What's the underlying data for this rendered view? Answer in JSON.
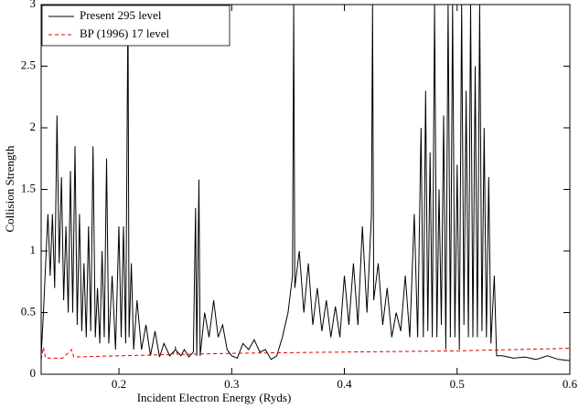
{
  "chart_data": {
    "type": "line",
    "xlabel": "Incident Electron Energy (Ryds)",
    "ylabel": "Collision Strength",
    "xlim": [
      0.131,
      0.6
    ],
    "xticks": [
      0.2,
      0.3,
      0.4,
      0.5,
      0.6
    ],
    "ylim": [
      0,
      3
    ],
    "yticks": [
      0,
      0.5,
      1,
      1.5,
      2,
      2.5,
      3
    ],
    "legend": "upper-left",
    "series": [
      {
        "name": "Present 295 level",
        "color": "#000000",
        "dash": false,
        "x": [
          0.131,
          0.133,
          0.135,
          0.137,
          0.139,
          0.141,
          0.143,
          0.145,
          0.147,
          0.149,
          0.151,
          0.153,
          0.155,
          0.157,
          0.159,
          0.161,
          0.163,
          0.165,
          0.167,
          0.169,
          0.171,
          0.173,
          0.175,
          0.177,
          0.179,
          0.181,
          0.183,
          0.185,
          0.187,
          0.189,
          0.191,
          0.194,
          0.197,
          0.2,
          0.202,
          0.204,
          0.206,
          0.208,
          0.209,
          0.211,
          0.213,
          0.216,
          0.22,
          0.224,
          0.228,
          0.232,
          0.236,
          0.24,
          0.245,
          0.25,
          0.255,
          0.258,
          0.262,
          0.266,
          0.268,
          0.269,
          0.271,
          0.272,
          0.276,
          0.28,
          0.284,
          0.288,
          0.292,
          0.296,
          0.3,
          0.305,
          0.31,
          0.315,
          0.32,
          0.325,
          0.33,
          0.335,
          0.34,
          0.345,
          0.35,
          0.354,
          0.355,
          0.356,
          0.36,
          0.364,
          0.368,
          0.372,
          0.376,
          0.38,
          0.384,
          0.388,
          0.392,
          0.396,
          0.4,
          0.404,
          0.408,
          0.412,
          0.416,
          0.42,
          0.424,
          0.425,
          0.426,
          0.43,
          0.434,
          0.438,
          0.442,
          0.446,
          0.45,
          0.454,
          0.458,
          0.462,
          0.465,
          0.468,
          0.47,
          0.472,
          0.474,
          0.476,
          0.478,
          0.48,
          0.482,
          0.484,
          0.486,
          0.488,
          0.49,
          0.492,
          0.494,
          0.496,
          0.498,
          0.5,
          0.502,
          0.504,
          0.506,
          0.508,
          0.51,
          0.512,
          0.514,
          0.516,
          0.518,
          0.52,
          0.522,
          0.524,
          0.526,
          0.528,
          0.53,
          0.533,
          0.535,
          0.54,
          0.55,
          0.56,
          0.57,
          0.58,
          0.59,
          0.6
        ],
        "values": [
          0.15,
          0.5,
          0.9,
          1.3,
          0.8,
          1.3,
          0.7,
          2.1,
          0.9,
          1.6,
          0.6,
          1.2,
          0.5,
          1.65,
          0.5,
          1.85,
          0.4,
          1.3,
          0.35,
          0.9,
          0.3,
          1.2,
          0.35,
          1.85,
          0.3,
          0.7,
          0.25,
          1.0,
          0.3,
          1.75,
          0.25,
          0.8,
          0.2,
          1.2,
          0.3,
          1.2,
          0.25,
          3.0,
          0.3,
          0.9,
          0.2,
          0.6,
          0.2,
          0.4,
          0.15,
          0.35,
          0.14,
          0.25,
          0.15,
          0.2,
          0.15,
          0.2,
          0.14,
          0.18,
          1.35,
          0.15,
          1.58,
          0.15,
          0.5,
          0.3,
          0.6,
          0.3,
          0.4,
          0.2,
          0.15,
          0.13,
          0.25,
          0.2,
          0.28,
          0.18,
          0.2,
          0.12,
          0.15,
          0.3,
          0.5,
          0.8,
          3.0,
          0.7,
          1.0,
          0.5,
          0.9,
          0.4,
          0.7,
          0.35,
          0.6,
          0.3,
          0.55,
          0.3,
          0.8,
          0.4,
          0.9,
          0.4,
          1.2,
          0.5,
          1.3,
          3.0,
          0.6,
          0.9,
          0.4,
          0.7,
          0.3,
          0.5,
          0.35,
          0.8,
          0.3,
          1.3,
          0.3,
          2.0,
          0.3,
          2.3,
          0.35,
          1.8,
          0.3,
          3.0,
          0.3,
          1.5,
          0.4,
          2.1,
          0.2,
          3.0,
          0.3,
          3.0,
          0.3,
          1.7,
          0.2,
          3.0,
          0.4,
          2.3,
          0.3,
          3.0,
          0.3,
          2.5,
          0.3,
          3.0,
          0.35,
          2.0,
          0.3,
          1.6,
          0.25,
          0.8,
          0.15,
          0.15,
          0.13,
          0.14,
          0.12,
          0.15,
          0.12,
          0.11
        ]
      },
      {
        "name": "BP (1996) 17 level",
        "color": "#e00000",
        "dash": true,
        "x": [
          0.131,
          0.133,
          0.135,
          0.15,
          0.158,
          0.16,
          0.2,
          0.248,
          0.25,
          0.252,
          0.3,
          0.4,
          0.5,
          0.6
        ],
        "values": [
          0.12,
          0.22,
          0.13,
          0.13,
          0.2,
          0.14,
          0.15,
          0.16,
          0.22,
          0.16,
          0.17,
          0.18,
          0.19,
          0.21
        ]
      }
    ]
  }
}
